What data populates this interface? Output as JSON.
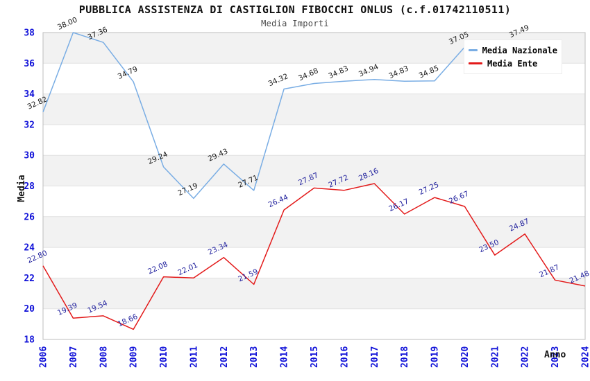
{
  "chart_data": {
    "type": "line",
    "title": "PUBBLICA ASSISTENZA DI CASTIGLION FIBOCCHI ONLUS (c.f.01742110511)",
    "subtitle": "Media Importi",
    "xlabel": "Anno",
    "ylabel": "Media",
    "x": [
      "2006",
      "2007",
      "2008",
      "2009",
      "2010",
      "2011",
      "2012",
      "2013",
      "2014",
      "2015",
      "2016",
      "2017",
      "2018",
      "2019",
      "2020",
      "2021",
      "2022",
      "2023",
      "2024"
    ],
    "ylim": [
      18,
      38
    ],
    "ytick_step": 2,
    "grid": true,
    "legend_position": "top-right",
    "axis_tick_color": "#0f10d8",
    "band_colors": [
      "#f2f2f2",
      "#ffffff"
    ],
    "gridline_color": "#e1e1e1",
    "border_color": "#bdbdbd",
    "series": [
      {
        "name": "Media Nazionale",
        "color": "#79ade4",
        "label_color": "#1a1a1a",
        "values": [
          32.82,
          38.0,
          37.36,
          34.79,
          29.24,
          27.19,
          29.43,
          27.71,
          34.32,
          34.68,
          34.83,
          34.94,
          34.83,
          34.85,
          37.05,
          37.3,
          37.49,
          null,
          null
        ],
        "labels": [
          "32.82",
          "38.00",
          "37.36",
          "34.79",
          "29.24",
          "27.19",
          "29.43",
          "27.71",
          "34.32",
          "34.68",
          "34.83",
          "34.94",
          "34.83",
          "34.85",
          "37.05",
          "",
          "37.49",
          "",
          ""
        ]
      },
      {
        "name": "Media Ente",
        "color": "#e31a1a",
        "label_color": "#22229e",
        "values": [
          22.8,
          19.39,
          19.54,
          18.66,
          22.08,
          22.01,
          23.34,
          21.59,
          26.44,
          27.87,
          27.72,
          28.16,
          26.17,
          27.25,
          26.67,
          23.5,
          24.87,
          21.87,
          21.48
        ],
        "labels": [
          "22.80",
          "19.39",
          "19.54",
          "18.66",
          "22.08",
          "22.01",
          "23.34",
          "21.59",
          "26.44",
          "27.87",
          "27.72",
          "28.16",
          "26.17",
          "27.25",
          "26.67",
          "23.50",
          "24.87",
          "21.87",
          "21.48"
        ]
      }
    ]
  }
}
